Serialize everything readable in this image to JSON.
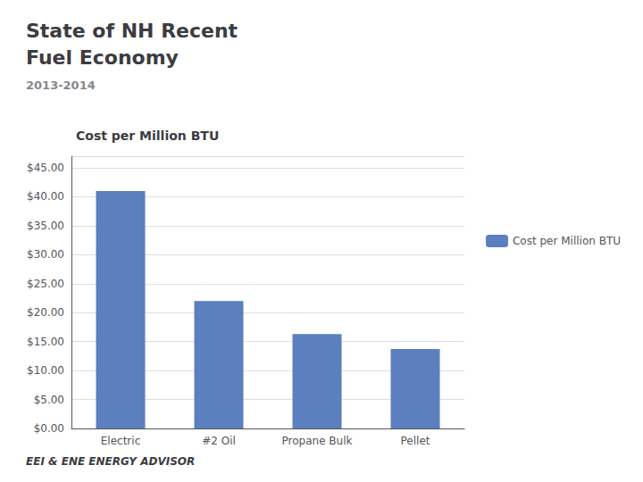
{
  "chart_data": {
    "type": "bar",
    "title": "State of NH Recent\nFuel Economy",
    "subtitle": "2013-2014",
    "annotations": [
      "Cost per Million BTU",
      "EEI & ENE ENERGY ADVISOR"
    ],
    "categories": [
      "Electric",
      "#2 Oil",
      "Propane Bulk",
      "Pellet"
    ],
    "series": [
      {
        "name": "Cost per Million BTU",
        "color": "#5B7FBF",
        "values": [
          41.0,
          22.0,
          16.3,
          13.7
        ]
      }
    ],
    "ylim": [
      0,
      47
    ],
    "yticks": [
      {
        "value": 0,
        "label": "$0.00"
      },
      {
        "value": 5,
        "label": "$5.00"
      },
      {
        "value": 10,
        "label": "$10.00"
      },
      {
        "value": 15,
        "label": "$15.00"
      },
      {
        "value": 20,
        "label": "$20.00"
      },
      {
        "value": 25,
        "label": "$25.00"
      },
      {
        "value": 30,
        "label": "$30.00"
      },
      {
        "value": 35,
        "label": "$35.00"
      },
      {
        "value": 40,
        "label": "$40.00"
      },
      {
        "value": 45,
        "label": "$45.00"
      }
    ],
    "grid": true,
    "legend": "right"
  }
}
